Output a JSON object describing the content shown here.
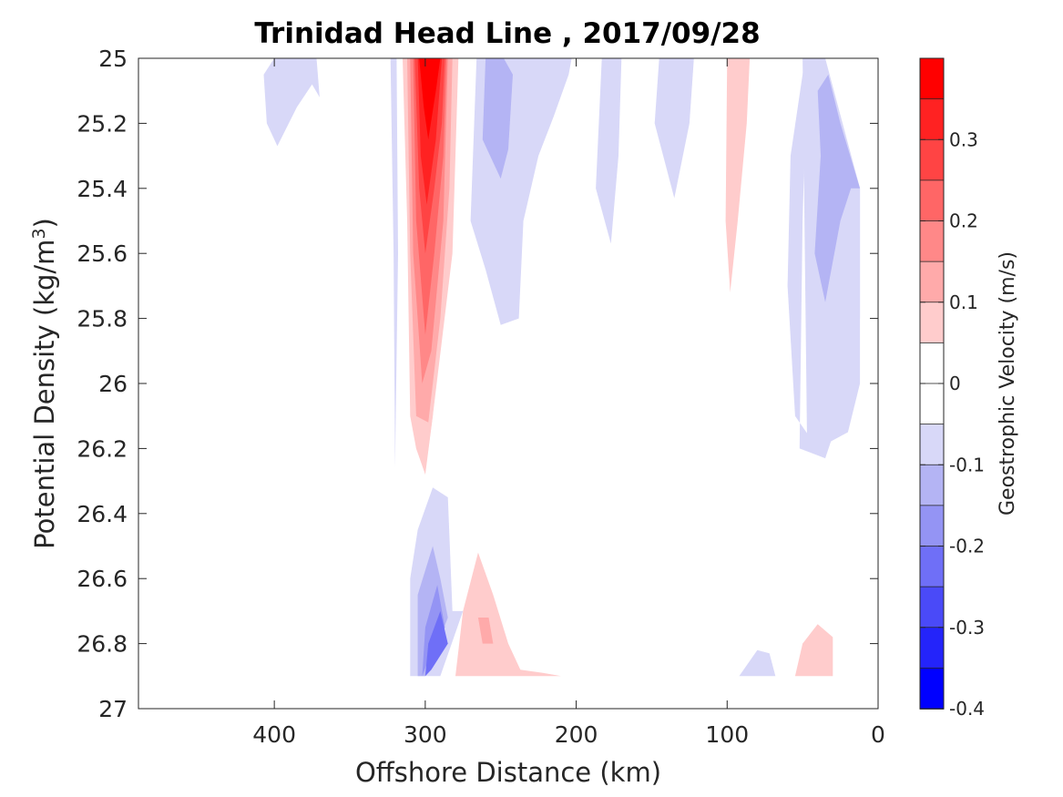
{
  "chart_data": {
    "type": "contour",
    "title": "Trinidad Head Line , 2017/09/28",
    "xlabel": "Offshore Distance (km)",
    "ylabel_main": "Potential Density (kg/m",
    "ylabel_sup": "3",
    "ylabel_close": ")",
    "xlim": [
      490,
      0
    ],
    "ylim": [
      25,
      27
    ],
    "x_ticks": [
      400,
      300,
      200,
      100,
      0
    ],
    "x_tick_labels": [
      "400",
      "300",
      "200",
      "100",
      "0"
    ],
    "y_ticks": [
      25,
      25.2,
      25.4,
      25.6,
      25.8,
      26,
      26.2,
      26.4,
      26.6,
      26.8,
      27
    ],
    "y_tick_labels": [
      "25",
      "25.2",
      "25.4",
      "25.6",
      "25.8",
      "26",
      "26.2",
      "26.4",
      "26.6",
      "26.8",
      "27"
    ],
    "grid": false,
    "colorbar": {
      "label": "Geostrophic Velocity (m/s)",
      "range": [
        -0.4,
        0.4
      ],
      "ticks": [
        0.3,
        0.2,
        0.1,
        0,
        -0.1,
        -0.2,
        -0.3,
        -0.4
      ],
      "tick_labels": [
        "0.3",
        "0.2",
        "0.1",
        "0",
        "-0.1",
        "-0.2",
        "-0.3",
        "-0.4"
      ],
      "levels": [
        0.35,
        0.3,
        0.25,
        0.2,
        0.15,
        0.1,
        0.05,
        0,
        -0.05,
        -0.1,
        -0.15,
        -0.2,
        -0.25,
        -0.3,
        -0.35,
        -0.4
      ],
      "colors": [
        "#ff0000",
        "#ff2222",
        "#ff4444",
        "#ff6666",
        "#ff8888",
        "#ffaaaa",
        "#ffcccc",
        "#ffffff",
        "#ffffff",
        "#d8d8f8",
        "#b4b4f4",
        "#9494f4",
        "#6f6ff7",
        "#4a4af8",
        "#2424fa",
        "#0000ff"
      ]
    },
    "regions": [
      {
        "color": "#d8d8f8",
        "points": [
          [
            400,
            25
          ],
          [
            407,
            25.05
          ],
          [
            405,
            25.2
          ],
          [
            398,
            25.27
          ],
          [
            385,
            25.15
          ],
          [
            375,
            25.08
          ],
          [
            370,
            25.12
          ],
          [
            372,
            25
          ]
        ]
      },
      {
        "color": "#d8d8f8",
        "points": [
          [
            323,
            25
          ],
          [
            321,
            25.6
          ],
          [
            320,
            26.26
          ],
          [
            318,
            25.6
          ],
          [
            319,
            25
          ]
        ]
      },
      {
        "color": "#d8d8f8",
        "points": [
          [
            266,
            25
          ],
          [
            270,
            25.5
          ],
          [
            260,
            25.65
          ],
          [
            250,
            25.82
          ],
          [
            238,
            25.8
          ],
          [
            235,
            25.5
          ],
          [
            225,
            25.3
          ],
          [
            215,
            25.18
          ],
          [
            205,
            25.05
          ],
          [
            203,
            25
          ]
        ]
      },
      {
        "color": "#b4b4f4",
        "points": [
          [
            260,
            25
          ],
          [
            262,
            25.25
          ],
          [
            250,
            25.37
          ],
          [
            245,
            25.28
          ],
          [
            242,
            25.05
          ],
          [
            248,
            25
          ]
        ]
      },
      {
        "color": "#d8d8f8",
        "points": [
          [
            183,
            25
          ],
          [
            187,
            25.4
          ],
          [
            177,
            25.57
          ],
          [
            172,
            25.3
          ],
          [
            170,
            25
          ]
        ]
      },
      {
        "color": "#d8d8f8",
        "points": [
          [
            145,
            25
          ],
          [
            148,
            25.2
          ],
          [
            135,
            25.43
          ],
          [
            125,
            25.2
          ],
          [
            122,
            25
          ]
        ]
      },
      {
        "color": "#ffcccc",
        "points": [
          [
            100,
            25
          ],
          [
            101,
            25.5
          ],
          [
            98,
            25.72
          ],
          [
            93,
            25.5
          ],
          [
            87,
            25.2
          ],
          [
            85,
            25
          ]
        ]
      },
      {
        "color": "#d8d8f8",
        "points": [
          [
            47,
            25
          ],
          [
            50,
            25.5
          ],
          [
            52,
            26.2
          ],
          [
            35,
            26.23
          ],
          [
            30,
            26
          ],
          [
            25,
            25.3
          ],
          [
            18,
            25.3
          ],
          [
            12,
            25.4
          ],
          [
            12,
            26
          ],
          [
            20,
            26.15
          ],
          [
            40,
            26.2
          ],
          [
            55,
            26.1
          ],
          [
            60,
            25.7
          ],
          [
            58,
            25.3
          ],
          [
            50,
            25.05
          ],
          [
            48,
            25
          ]
        ]
      },
      {
        "color": "#d8d8f8",
        "points": [
          [
            50,
            25
          ],
          [
            47,
            26.2
          ],
          [
            35,
            26.23
          ],
          [
            22,
            26.05
          ],
          [
            12,
            25.8
          ],
          [
            12,
            25.4
          ],
          [
            35,
            25
          ],
          [
            50,
            25
          ]
        ]
      },
      {
        "color": "#b4b4f4",
        "points": [
          [
            40,
            25.1
          ],
          [
            38,
            25.3
          ],
          [
            42,
            25.6
          ],
          [
            35,
            25.75
          ],
          [
            25,
            25.5
          ],
          [
            18,
            25.4
          ],
          [
            12,
            25.4
          ],
          [
            25,
            25.2
          ],
          [
            33,
            25.05
          ]
        ]
      },
      {
        "color": "#d8d8f8",
        "points": [
          [
            310,
            26.9
          ],
          [
            310,
            26.6
          ],
          [
            305,
            26.45
          ],
          [
            295,
            26.32
          ],
          [
            285,
            26.35
          ],
          [
            282,
            26.7
          ],
          [
            275,
            26.7
          ],
          [
            290,
            26.9
          ]
        ]
      },
      {
        "color": "#b4b4f4",
        "points": [
          [
            305,
            26.9
          ],
          [
            305,
            26.65
          ],
          [
            295,
            26.5
          ],
          [
            290,
            26.6
          ],
          [
            285,
            26.72
          ],
          [
            300,
            26.9
          ]
        ]
      },
      {
        "color": "#9494f4",
        "points": [
          [
            302,
            26.9
          ],
          [
            300,
            26.75
          ],
          [
            292,
            26.62
          ],
          [
            287,
            26.75
          ],
          [
            298,
            26.85
          ]
        ]
      },
      {
        "color": "#6f6ff7",
        "points": [
          [
            300,
            26.9
          ],
          [
            298,
            26.8
          ],
          [
            290,
            26.7
          ],
          [
            285,
            26.8
          ],
          [
            296,
            26.88
          ]
        ]
      },
      {
        "color": "#ffcccc",
        "points": [
          [
            280,
            26.9
          ],
          [
            275,
            26.7
          ],
          [
            265,
            26.52
          ],
          [
            255,
            26.65
          ],
          [
            245,
            26.8
          ],
          [
            237,
            26.88
          ],
          [
            222,
            26.89
          ],
          [
            210,
            26.9
          ]
        ]
      },
      {
        "color": "#ffaaaa",
        "points": [
          [
            262,
            26.8
          ],
          [
            265,
            26.72
          ],
          [
            258,
            26.72
          ],
          [
            255,
            26.8
          ]
        ]
      },
      {
        "color": "#d8d8f8",
        "points": [
          [
            92,
            26.9
          ],
          [
            80,
            26.82
          ],
          [
            72,
            26.83
          ],
          [
            68,
            26.9
          ]
        ]
      },
      {
        "color": "#ffcccc",
        "points": [
          [
            55,
            26.9
          ],
          [
            50,
            26.8
          ],
          [
            40,
            26.74
          ],
          [
            30,
            26.78
          ],
          [
            30,
            26.9
          ]
        ]
      },
      {
        "color": "#ffcccc",
        "points": [
          [
            306,
            26.0
          ],
          [
            306,
            26.2
          ],
          [
            300,
            26.27
          ],
          [
            295,
            26.1
          ],
          [
            290,
            25.8
          ],
          [
            284,
            25.4
          ],
          [
            282,
            25.0
          ],
          [
            306,
            25.0
          ]
        ]
      },
      {
        "color": "#ffcccc",
        "points": [
          [
            315,
            25.0
          ],
          [
            312,
            25.5
          ],
          [
            310,
            26.1
          ],
          [
            306,
            26.2
          ],
          [
            300,
            26.28
          ],
          [
            295,
            26.1
          ],
          [
            282,
            25.6
          ],
          [
            278,
            25.0
          ]
        ]
      },
      {
        "color": "#ffaaaa",
        "points": [
          [
            312,
            25.0
          ],
          [
            310,
            25.6
          ],
          [
            306,
            26.1
          ],
          [
            298,
            26.12
          ],
          [
            290,
            25.8
          ],
          [
            284,
            25.4
          ],
          [
            282,
            25.0
          ]
        ]
      },
      {
        "color": "#ff8888",
        "points": [
          [
            310,
            25.0
          ],
          [
            308,
            25.6
          ],
          [
            302,
            26.0
          ],
          [
            296,
            25.9
          ],
          [
            288,
            25.5
          ],
          [
            285,
            25.0
          ]
        ]
      },
      {
        "color": "#ff6666",
        "points": [
          [
            308,
            25.0
          ],
          [
            306,
            25.5
          ],
          [
            300,
            25.85
          ],
          [
            294,
            25.6
          ],
          [
            288,
            25.3
          ],
          [
            286,
            25.0
          ]
        ]
      },
      {
        "color": "#ff4444",
        "points": [
          [
            307,
            25.0
          ],
          [
            304,
            25.4
          ],
          [
            300,
            25.6
          ],
          [
            294,
            25.4
          ],
          [
            289,
            25.2
          ],
          [
            287,
            25.0
          ]
        ]
      },
      {
        "color": "#ff2222",
        "points": [
          [
            305,
            25.0
          ],
          [
            303,
            25.3
          ],
          [
            299,
            25.45
          ],
          [
            293,
            25.25
          ],
          [
            289,
            25.0
          ]
        ]
      },
      {
        "color": "#ff0000",
        "points": [
          [
            304,
            25.0
          ],
          [
            301,
            25.15
          ],
          [
            298,
            25.25
          ],
          [
            293,
            25.1
          ],
          [
            290,
            25.0
          ]
        ]
      }
    ]
  }
}
